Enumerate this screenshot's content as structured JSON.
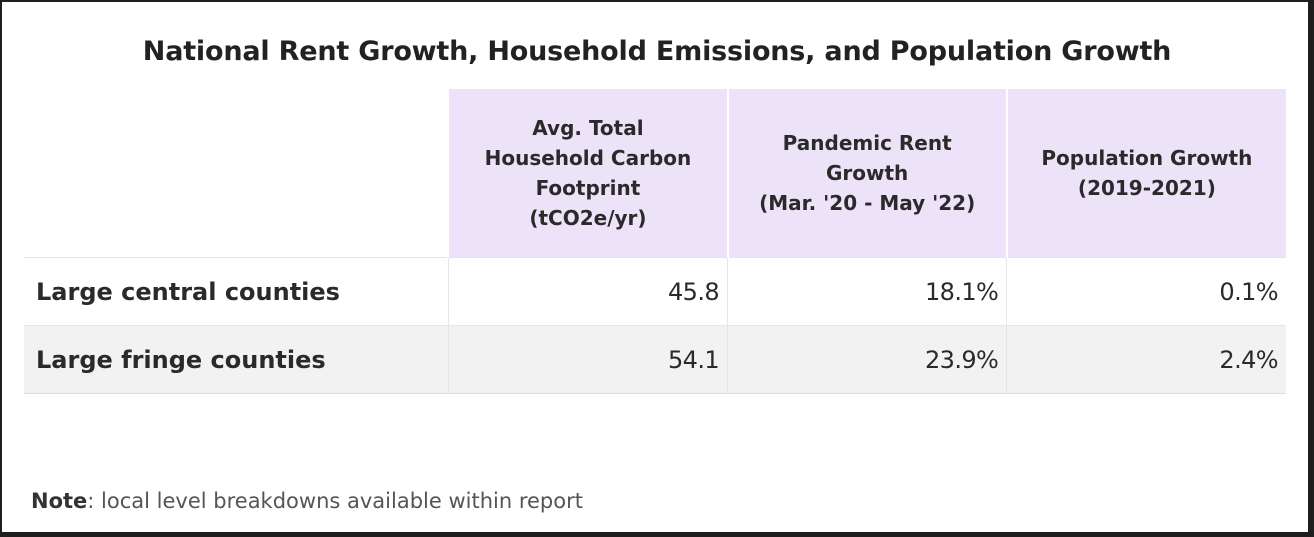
{
  "chart_data": {
    "type": "table",
    "title": "National Rent Growth, Household Emissions, and Population Growth",
    "columns": [
      "Avg. Total Household Carbon Footprint (tCO2e/yr)",
      "Pandemic Rent Growth (Mar. '20 - May '22)",
      "Population Growth (2019-2021)"
    ],
    "header_lines": [
      [
        "Avg. Total",
        "Household Carbon",
        "Footprint",
        "(tCO2e/yr)"
      ],
      [
        "Pandemic Rent",
        "Growth",
        "(Mar. '20 - May '22)"
      ],
      [
        "Population Growth",
        "(2019-2021)"
      ]
    ],
    "rows": [
      {
        "label": "Large central counties",
        "cells": [
          "45.8",
          "18.1%",
          "0.1%"
        ],
        "values": [
          45.8,
          18.1,
          0.1
        ]
      },
      {
        "label": "Large fringe counties",
        "cells": [
          "54.1",
          "23.9%",
          "2.4%"
        ],
        "values": [
          54.1,
          23.9,
          2.4
        ]
      }
    ],
    "header_bg": "#ece3f8",
    "shaded_row_bg": "#f2f2f2"
  },
  "note": {
    "label": "Note",
    "text": ": local level breakdowns available within report"
  }
}
